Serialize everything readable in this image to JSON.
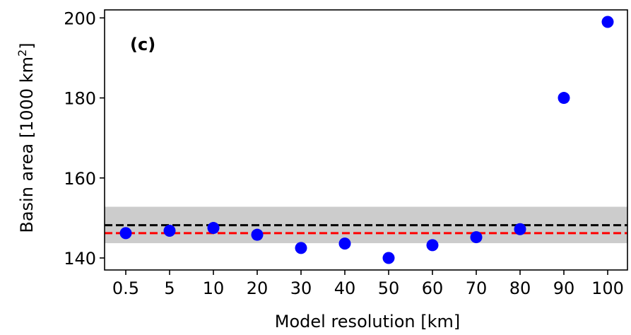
{
  "chart_data": {
    "type": "scatter",
    "panel_label": "(c)",
    "xlabel": "Model resolution [km]",
    "ylabel_main": "Basin area [1000 km",
    "ylabel_sup": "2",
    "ylabel_close": "]",
    "categories": [
      "0.5",
      "5",
      "10",
      "20",
      "30",
      "40",
      "50",
      "60",
      "70",
      "80",
      "90",
      "100"
    ],
    "series": [
      {
        "color": "#0000ff",
        "values": [
          146.2,
          146.8,
          147.5,
          145.8,
          142.5,
          143.6,
          140.0,
          143.2,
          145.2,
          147.2,
          180.0,
          199.0
        ]
      }
    ],
    "reference_lines": [
      {
        "value": 148.2,
        "color": "#000000",
        "style": "dashed"
      },
      {
        "value": 146.2,
        "color": "#ff0000",
        "style": "dashed"
      }
    ],
    "shaded_band": {
      "from": 143.7,
      "to": 152.8,
      "color": "#cccccc"
    },
    "ylim": [
      137,
      202
    ],
    "yticks": [
      140,
      160,
      180,
      200
    ],
    "grid": false,
    "legend": "none"
  }
}
